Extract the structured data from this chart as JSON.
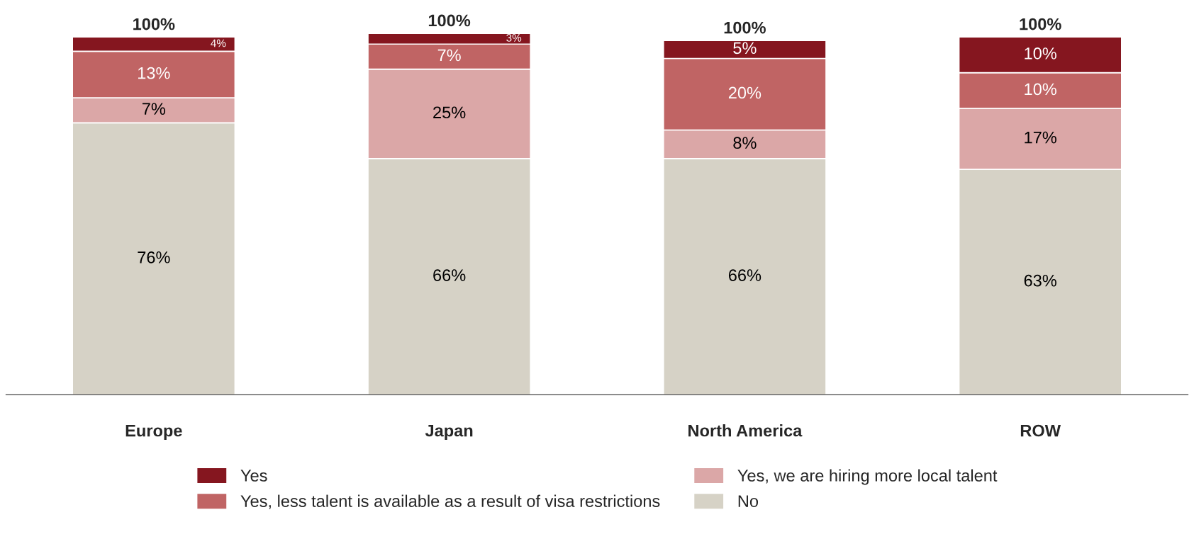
{
  "chart_data": {
    "type": "bar",
    "stacked": true,
    "categories": [
      "Europe",
      "Japan",
      "North America",
      "ROW"
    ],
    "series": [
      {
        "name": "No",
        "color": "#d6d2c6",
        "values": [
          76,
          66,
          66,
          63
        ],
        "value_labels": [
          "76%",
          "66%",
          "66%",
          "63%"
        ]
      },
      {
        "name": "Yes, we are hiring more local talent",
        "color": "#dba7a7",
        "values": [
          7,
          25,
          8,
          17
        ],
        "value_labels": [
          "7%",
          "25%",
          "8%",
          "17%"
        ]
      },
      {
        "name": "Yes, less talent is available as a result of visa restrictions",
        "color": "#c06464",
        "values": [
          13,
          7,
          20,
          10
        ],
        "value_labels": [
          "13%",
          "7%",
          "20%",
          "10%"
        ]
      },
      {
        "name": "Yes",
        "color": "#85161f",
        "values": [
          4,
          3,
          5,
          10
        ],
        "value_labels": [
          "4%",
          "3%",
          "5%",
          "10%"
        ]
      }
    ],
    "totals": [
      "100%",
      "100%",
      "100%",
      "100%"
    ],
    "legend": "bottom",
    "grid": false
  }
}
